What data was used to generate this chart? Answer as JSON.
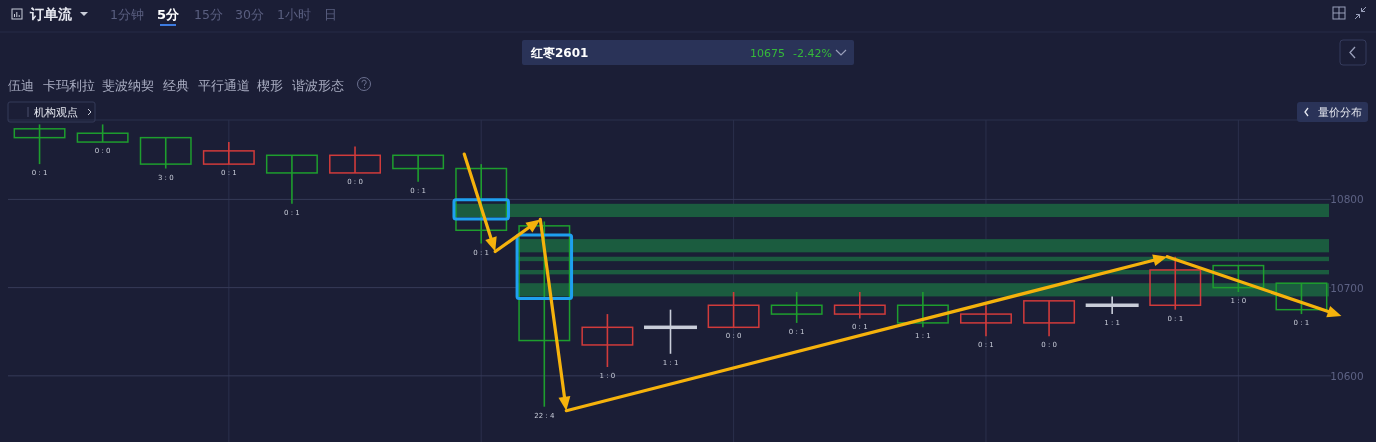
{
  "chart_data": {
    "type": "candlestick",
    "title": "红枣2601",
    "subtitle": "10675",
    "annotations": [
      "订单流",
      "1分钟",
      "5分",
      "15分",
      "30分",
      "1小时",
      "日",
      "-2.42%",
      "伍迪",
      "卡玛利拉",
      "斐波纳契",
      "经典",
      "平行通道",
      "楔形",
      "谐波形态",
      "机构观点",
      "量价分布"
    ],
    "categories": [
      null,
      null,
      null,
      null,
      null,
      null,
      null,
      null,
      null,
      null,
      null,
      null,
      null,
      null,
      null,
      null,
      null,
      null,
      null,
      null,
      null
    ],
    "ohlc": [
      [
        10880,
        10885,
        10840,
        10870
      ],
      [
        10875,
        10885,
        10865,
        10865
      ],
      [
        10870,
        10870,
        10835,
        10840
      ],
      [
        10840,
        10865,
        10840,
        10855
      ],
      [
        10850,
        10850,
        10795,
        10830
      ],
      [
        10830,
        10860,
        10830,
        10850
      ],
      [
        10850,
        10850,
        10820,
        10835
      ],
      [
        10835,
        10840,
        10750,
        10765
      ],
      [
        10770,
        10775,
        10565,
        10640
      ],
      [
        10635,
        10670,
        10610,
        10655
      ],
      [
        10655,
        10675,
        10625,
        10655
      ],
      [
        10655,
        10695,
        10655,
        10680
      ],
      [
        10680,
        10695,
        10660,
        10670
      ],
      [
        10670,
        10695,
        10665,
        10680
      ],
      [
        10680,
        10695,
        10655,
        10660
      ],
      [
        10660,
        10680,
        10645,
        10670
      ],
      [
        10660,
        10685,
        10645,
        10685
      ],
      [
        10680,
        10690,
        10670,
        10680
      ],
      [
        10680,
        10735,
        10675,
        10720
      ],
      [
        10725,
        10725,
        10695,
        10700
      ],
      [
        10705,
        10705,
        10670,
        10675
      ]
    ],
    "colors": [
      "#1e9e2e",
      "#1e9e2e",
      "#1e9e2e",
      "#d13b3b",
      "#1e9e2e",
      "#d13b3b",
      "#1e9e2e",
      "#1e9e2e",
      "#1e9e2e",
      "#d13b3b",
      "#c9cdd9",
      "#d13b3b",
      "#1e9e2e",
      "#d13b3b",
      "#1e9e2e",
      "#d13b3b",
      "#d13b3b",
      "#c9cdd9",
      "#d13b3b",
      "#1e9e2e",
      "#1e9e2e"
    ],
    "value_labels": [
      "0 : 1",
      "0 : 0",
      "3 : 0",
      "0 : 1",
      "0 : 1",
      "0 : 0",
      "0 : 1",
      "0 : 1",
      "22 : 4",
      "1 : 0",
      "1 : 1",
      "0 : 0",
      "0 : 1",
      "0 : 1",
      "1 : 1",
      "0 : 1",
      "0 : 0",
      "1 : 1",
      "0 : 1",
      "1 : 0",
      "0 : 1"
    ],
    "ylim": [
      10525,
      10890
    ],
    "yticks": [
      10600,
      10700,
      10800
    ],
    "grid": true,
    "tick_labels": "y",
    "bands": [
      {
        "axis": "y",
        "from": 10780,
        "to": 10795,
        "color": "#1b5c3f"
      },
      {
        "axis": "y",
        "from": 10740,
        "to": 10755,
        "color": "#1b5c3f"
      },
      {
        "axis": "y",
        "from": 10730,
        "to": 10735,
        "color": "#1b5c3f"
      },
      {
        "axis": "y",
        "from": 10715,
        "to": 10720,
        "color": "#1b5c3f"
      },
      {
        "axis": "y",
        "from": 10690,
        "to": 10705,
        "color": "#1b5c3f"
      }
    ]
  }
}
